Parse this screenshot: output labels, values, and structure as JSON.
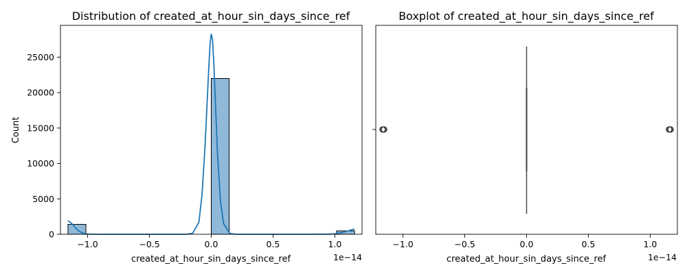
{
  "chart_data": [
    {
      "type": "bar",
      "title": "Distribution of created_at_hour_sin_days_since_ref",
      "xlabel": "created_at_hour_sin_days_since_ref",
      "ylabel": "Count",
      "x_offset_label": "1e−14",
      "xlim": [
        -1.22,
        1.22
      ],
      "ylim": [
        0,
        29500
      ],
      "x_ticks": [
        -1.0,
        -0.5,
        0.0,
        0.5,
        1.0
      ],
      "x_tick_labels": [
        "−1.0",
        "−0.5",
        "0.0",
        "0.5",
        "1.0"
      ],
      "y_ticks": [
        0,
        5000,
        10000,
        15000,
        20000,
        25000
      ],
      "y_tick_labels": [
        "0",
        "5000",
        "10000",
        "15000",
        "20000",
        "25000"
      ],
      "bins": [
        {
          "x0": -1.159,
          "x1": -1.014,
          "count": 1400
        },
        {
          "x0": 0.0,
          "x1": 0.145,
          "count": 22000
        },
        {
          "x0": 1.014,
          "x1": 1.159,
          "count": 480
        }
      ],
      "bar_color": "#8fb8d9",
      "bar_edge_color": "#000000",
      "kde_color": "#1f77b4",
      "kde_series": {
        "x": [
          -1.16,
          -1.14,
          -1.12,
          -1.1,
          -1.08,
          -1.06,
          -1.04,
          -1.02,
          -1.0,
          -0.95,
          -0.9,
          -0.8,
          -0.6,
          -0.4,
          -0.3,
          -0.2,
          -0.15,
          -0.1,
          -0.075,
          -0.05,
          -0.035,
          -0.02,
          -0.01,
          0.0,
          0.01,
          0.02,
          0.035,
          0.05,
          0.075,
          0.1,
          0.15,
          0.2,
          0.3,
          0.5,
          0.8,
          0.95,
          1.0,
          1.05,
          1.1,
          1.13,
          1.16
        ],
        "y": [
          1900,
          1700,
          1350,
          950,
          600,
          340,
          170,
          80,
          40,
          10,
          2,
          0,
          0,
          0,
          0,
          0,
          150,
          1700,
          5500,
          12500,
          18000,
          23500,
          26800,
          28300,
          27500,
          24500,
          18000,
          11500,
          4600,
          1500,
          120,
          0,
          0,
          0,
          0,
          20,
          60,
          200,
          430,
          600,
          720
        ]
      }
    },
    {
      "type": "box",
      "title": "Boxplot of created_at_hour_sin_days_since_ref",
      "xlabel": "created_at_hour_sin_days_since_ref",
      "x_offset_label": "1e−14",
      "xlim": [
        -1.22,
        1.22
      ],
      "x_ticks": [
        -1.0,
        -0.5,
        0.0,
        0.5,
        1.0
      ],
      "x_tick_labels": [
        "−1.0",
        "−0.5",
        "0.0",
        "0.5",
        "1.0"
      ],
      "box": {
        "q1": 0.0,
        "median": 0.0,
        "q3": 0.0,
        "whisker_low": 0.0,
        "whisker_high": 0.0
      },
      "outliers": [
        -1.159,
        1.159
      ],
      "line_color": "#3f3f3f"
    }
  ]
}
